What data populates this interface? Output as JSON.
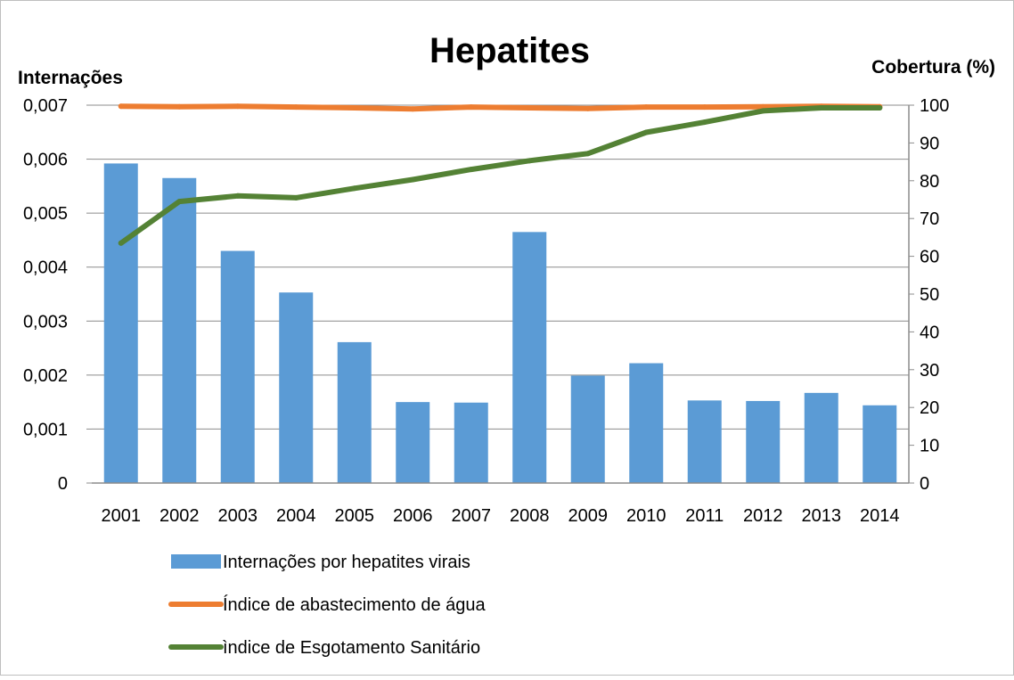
{
  "chart_data": {
    "type": "bar",
    "title": "Hepatites",
    "ylabel_left": "Internações",
    "ylabel_right": "Cobertura (%)",
    "categories": [
      "2001",
      "2002",
      "2003",
      "2004",
      "2005",
      "2006",
      "2007",
      "2008",
      "2009",
      "2010",
      "2011",
      "2012",
      "2013",
      "2014"
    ],
    "y_left": {
      "range": [
        0,
        0.007
      ],
      "ticks": [
        0,
        0.001,
        0.002,
        0.003,
        0.004,
        0.005,
        0.006,
        0.007
      ],
      "tick_labels": [
        "0",
        "0,001",
        "0,002",
        "0,003",
        "0,004",
        "0,005",
        "0,006",
        "0,007"
      ]
    },
    "y_right": {
      "range": [
        0,
        100
      ],
      "ticks": [
        0,
        10,
        20,
        30,
        40,
        50,
        60,
        70,
        80,
        90,
        100
      ],
      "tick_labels": [
        "0",
        "10",
        "20",
        "30",
        "40",
        "50",
        "60",
        "70",
        "80",
        "90",
        "100"
      ]
    },
    "grid": true,
    "legend_position": "bottom",
    "series": [
      {
        "name": "Internações por hepatites virais",
        "type": "bar",
        "axis": "left",
        "color": "#5b9bd5",
        "values": [
          0.00592,
          0.00565,
          0.0043,
          0.00353,
          0.00261,
          0.0015,
          0.00149,
          0.00465,
          0.00199,
          0.00222,
          0.00153,
          0.00152,
          0.00167,
          0.00144
        ]
      },
      {
        "name": "Índice de abastecimento de água",
        "type": "line",
        "axis": "right",
        "color": "#ed7d31",
        "values": [
          99.7,
          99.6,
          99.7,
          99.5,
          99.3,
          99.0,
          99.5,
          99.3,
          99.1,
          99.5,
          99.5,
          99.6,
          99.7,
          99.6
        ]
      },
      {
        "name": "ìndice de Esgotamento Sanitário",
        "type": "line",
        "axis": "right",
        "color": "#548235",
        "values": [
          63.5,
          74.5,
          76.0,
          75.5,
          78.0,
          80.3,
          83.0,
          85.3,
          87.2,
          92.8,
          95.5,
          98.5,
          99.3,
          99.3
        ]
      }
    ]
  }
}
